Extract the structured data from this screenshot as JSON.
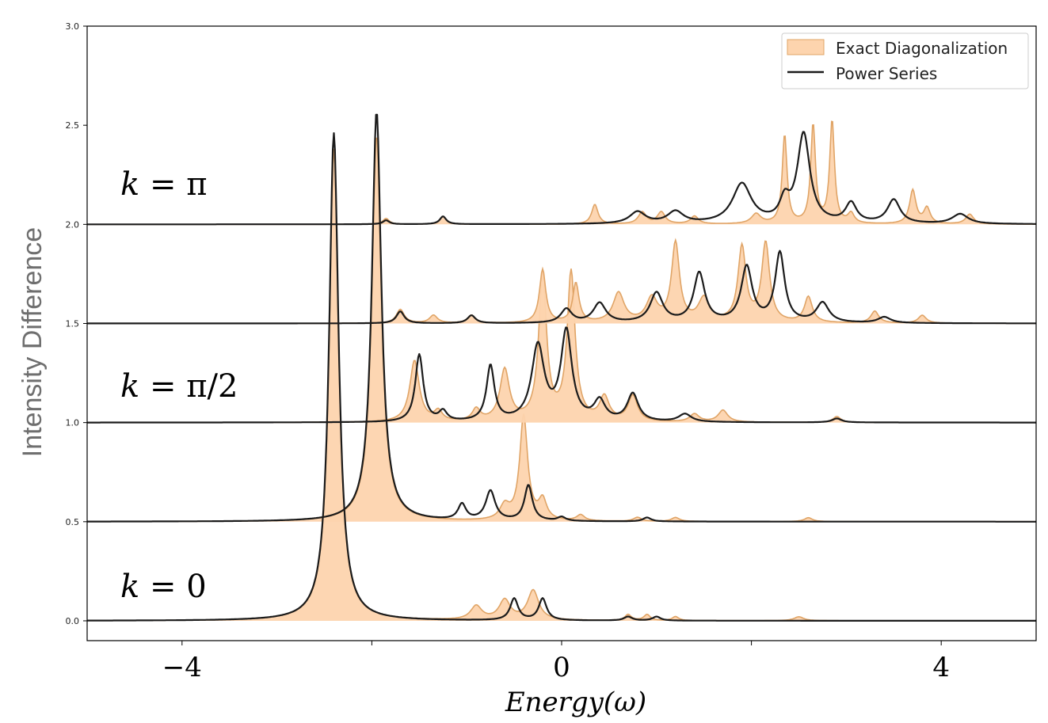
{
  "chart_data": {
    "type": "line",
    "title": "",
    "xlabel": "Energy(ω)",
    "ylabel": "Intensity Difference",
    "xlim": [
      -5,
      5
    ],
    "ylim": [
      -0.1,
      3.0
    ],
    "x_ticks": [
      -4,
      -2,
      0,
      2,
      4
    ],
    "x_tick_labels": [
      "−4",
      "",
      "0",
      "",
      "4"
    ],
    "y_ticks": [
      0.0,
      0.5,
      1.0,
      1.5,
      2.0,
      2.5,
      3.0
    ],
    "y_tick_labels": [
      "0.0",
      "0.5",
      "1.0",
      "1.5",
      "2.0",
      "2.5",
      "3.0"
    ],
    "grid": false,
    "legend": {
      "position": "top-right",
      "entries": [
        {
          "label": "Exact Diagonalization",
          "style": "filled-area",
          "color": "#fdd4ae",
          "edge": "#e0a466"
        },
        {
          "label": "Power Series",
          "style": "line",
          "color": "#1b1b1b"
        }
      ]
    },
    "curve_labels": [
      {
        "var": "k",
        "rest": " = π",
        "y": 2.15
      },
      {
        "var": "k",
        "rest": " = π/2",
        "y": 1.13
      },
      {
        "var": "k",
        "rest": " = 0",
        "y": 0.12
      }
    ],
    "series": [
      {
        "name": "Exact Diagonalization",
        "offset": 0.0,
        "peaks": [
          [
            -2.4,
            2.38,
            0.06
          ],
          [
            -0.9,
            0.07,
            0.07
          ],
          [
            -0.6,
            0.1,
            0.07
          ],
          [
            -0.3,
            0.15,
            0.07
          ],
          [
            0.7,
            0.03,
            0.04
          ],
          [
            0.9,
            0.03,
            0.04
          ],
          [
            1.2,
            0.02,
            0.04
          ],
          [
            2.5,
            0.02,
            0.06
          ]
        ]
      },
      {
        "name": "Power Series",
        "offset": 0.0,
        "peaks": [
          [
            -2.4,
            2.46,
            0.06
          ],
          [
            -0.5,
            0.11,
            0.05
          ],
          [
            -0.2,
            0.11,
            0.05
          ],
          [
            0.7,
            0.02,
            0.05
          ],
          [
            1.0,
            0.02,
            0.05
          ]
        ]
      },
      {
        "name": "Exact Diagonalization",
        "offset": 0.5,
        "peaks": [
          [
            -1.95,
            1.95,
            0.06
          ],
          [
            -0.6,
            0.07,
            0.06
          ],
          [
            -0.4,
            0.53,
            0.05
          ],
          [
            -0.2,
            0.1,
            0.05
          ],
          [
            0.2,
            0.03,
            0.05
          ],
          [
            0.8,
            0.02,
            0.05
          ],
          [
            1.2,
            0.02,
            0.05
          ],
          [
            2.6,
            0.02,
            0.05
          ]
        ]
      },
      {
        "name": "Power Series",
        "offset": 0.5,
        "peaks": [
          [
            -1.95,
            2.07,
            0.06
          ],
          [
            -1.05,
            0.08,
            0.05
          ],
          [
            -0.75,
            0.15,
            0.06
          ],
          [
            -0.35,
            0.18,
            0.05
          ],
          [
            0.0,
            0.02,
            0.05
          ],
          [
            0.9,
            0.02,
            0.05
          ]
        ]
      },
      {
        "name": "Exact Diagonalization",
        "offset": 1.0,
        "peaks": [
          [
            -1.55,
            0.31,
            0.06
          ],
          [
            -1.3,
            0.05,
            0.05
          ],
          [
            -0.9,
            0.06,
            0.05
          ],
          [
            -0.6,
            0.26,
            0.06
          ],
          [
            -0.2,
            0.73,
            0.05
          ],
          [
            0.1,
            0.75,
            0.05
          ],
          [
            0.45,
            0.12,
            0.06
          ],
          [
            0.75,
            0.13,
            0.06
          ],
          [
            1.4,
            0.04,
            0.06
          ],
          [
            1.7,
            0.06,
            0.06
          ],
          [
            2.9,
            0.03,
            0.05
          ]
        ]
      },
      {
        "name": "Power Series",
        "offset": 1.0,
        "peaks": [
          [
            -1.5,
            0.34,
            0.05
          ],
          [
            -1.25,
            0.05,
            0.05
          ],
          [
            -0.75,
            0.28,
            0.05
          ],
          [
            -0.25,
            0.38,
            0.08
          ],
          [
            0.05,
            0.45,
            0.07
          ],
          [
            0.4,
            0.1,
            0.07
          ],
          [
            0.75,
            0.14,
            0.07
          ],
          [
            1.3,
            0.04,
            0.08
          ],
          [
            2.9,
            0.02,
            0.06
          ]
        ]
      },
      {
        "name": "Exact Diagonalization",
        "offset": 1.5,
        "peaks": [
          [
            -1.7,
            0.07,
            0.05
          ],
          [
            -1.35,
            0.04,
            0.05
          ],
          [
            -0.95,
            0.04,
            0.05
          ],
          [
            -0.2,
            0.27,
            0.04
          ],
          [
            0.15,
            0.2,
            0.04
          ],
          [
            0.6,
            0.15,
            0.07
          ],
          [
            0.95,
            0.12,
            0.07
          ],
          [
            1.2,
            0.4,
            0.05
          ],
          [
            1.5,
            0.12,
            0.07
          ],
          [
            1.9,
            0.38,
            0.05
          ],
          [
            2.15,
            0.4,
            0.05
          ],
          [
            2.6,
            0.13,
            0.05
          ],
          [
            3.3,
            0.06,
            0.05
          ],
          [
            3.8,
            0.04,
            0.05
          ]
        ]
      },
      {
        "name": "Power Series",
        "offset": 1.5,
        "peaks": [
          [
            -1.7,
            0.06,
            0.05
          ],
          [
            -0.95,
            0.04,
            0.05
          ],
          [
            0.05,
            0.07,
            0.07
          ],
          [
            0.4,
            0.1,
            0.08
          ],
          [
            1.0,
            0.15,
            0.08
          ],
          [
            1.45,
            0.25,
            0.07
          ],
          [
            1.95,
            0.28,
            0.07
          ],
          [
            2.3,
            0.35,
            0.06
          ],
          [
            2.75,
            0.1,
            0.08
          ],
          [
            3.4,
            0.03,
            0.08
          ]
        ]
      },
      {
        "name": "Exact Diagonalization",
        "offset": 2.0,
        "peaks": [
          [
            -1.85,
            0.03,
            0.04
          ],
          [
            -1.25,
            0.04,
            0.04
          ],
          [
            0.35,
            0.1,
            0.04
          ],
          [
            0.85,
            0.06,
            0.05
          ],
          [
            1.05,
            0.06,
            0.05
          ],
          [
            1.4,
            0.04,
            0.05
          ],
          [
            2.05,
            0.05,
            0.06
          ],
          [
            2.35,
            0.45,
            0.03
          ],
          [
            2.65,
            0.5,
            0.03
          ],
          [
            2.85,
            0.52,
            0.03
          ],
          [
            3.05,
            0.05,
            0.04
          ],
          [
            3.7,
            0.17,
            0.04
          ],
          [
            3.85,
            0.08,
            0.04
          ],
          [
            4.3,
            0.05,
            0.05
          ]
        ]
      },
      {
        "name": "Power Series",
        "offset": 2.0,
        "peaks": [
          [
            -1.85,
            0.02,
            0.04
          ],
          [
            -1.25,
            0.04,
            0.04
          ],
          [
            0.8,
            0.06,
            0.1
          ],
          [
            1.2,
            0.06,
            0.1
          ],
          [
            1.9,
            0.2,
            0.12
          ],
          [
            2.35,
            0.1,
            0.06
          ],
          [
            2.55,
            0.45,
            0.08
          ],
          [
            3.05,
            0.1,
            0.07
          ],
          [
            3.5,
            0.12,
            0.08
          ],
          [
            4.2,
            0.05,
            0.1
          ]
        ]
      }
    ]
  }
}
